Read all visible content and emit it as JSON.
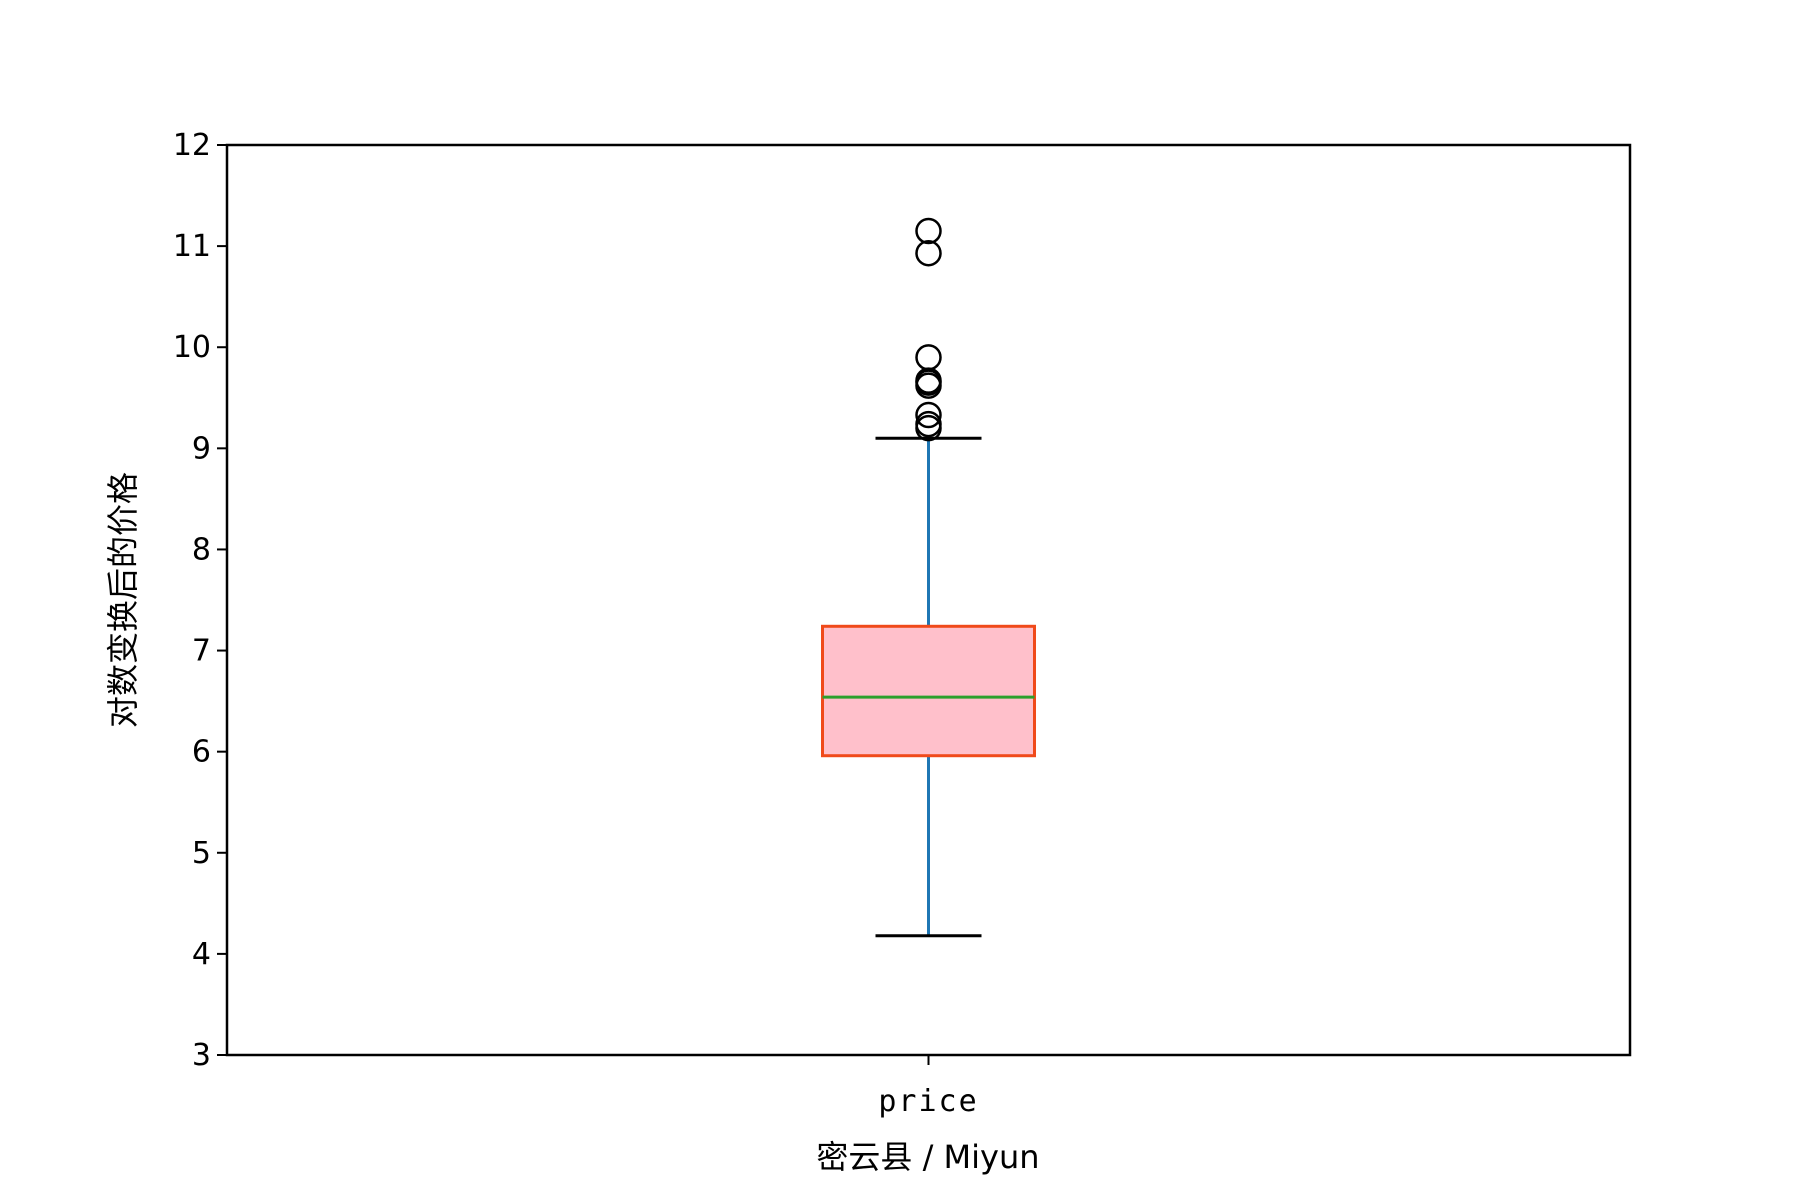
{
  "chart_data": {
    "type": "box",
    "title": "",
    "xlabel": "密云县 / Miyun",
    "ylabel": "对数变换后的价格",
    "categories": [
      "price"
    ],
    "ylim": [
      3,
      12
    ],
    "yticks": [
      3,
      4,
      5,
      6,
      7,
      8,
      9,
      10,
      11,
      12
    ],
    "grid": false,
    "boxes": [
      {
        "category": "price",
        "whisker_low": 4.18,
        "q1": 5.96,
        "median": 6.54,
        "q3": 7.24,
        "whisker_high": 9.1,
        "outliers": [
          9.2,
          9.24,
          9.33,
          9.62,
          9.65,
          9.67,
          9.9,
          10.93,
          11.15
        ]
      }
    ],
    "colors": {
      "box_fill": "#ffc0cb",
      "box_edge": "#f04a1a",
      "median": "#2ca02c",
      "whisker": "#1f77b4",
      "cap": "#000000",
      "outlier_edge": "#000000"
    }
  }
}
